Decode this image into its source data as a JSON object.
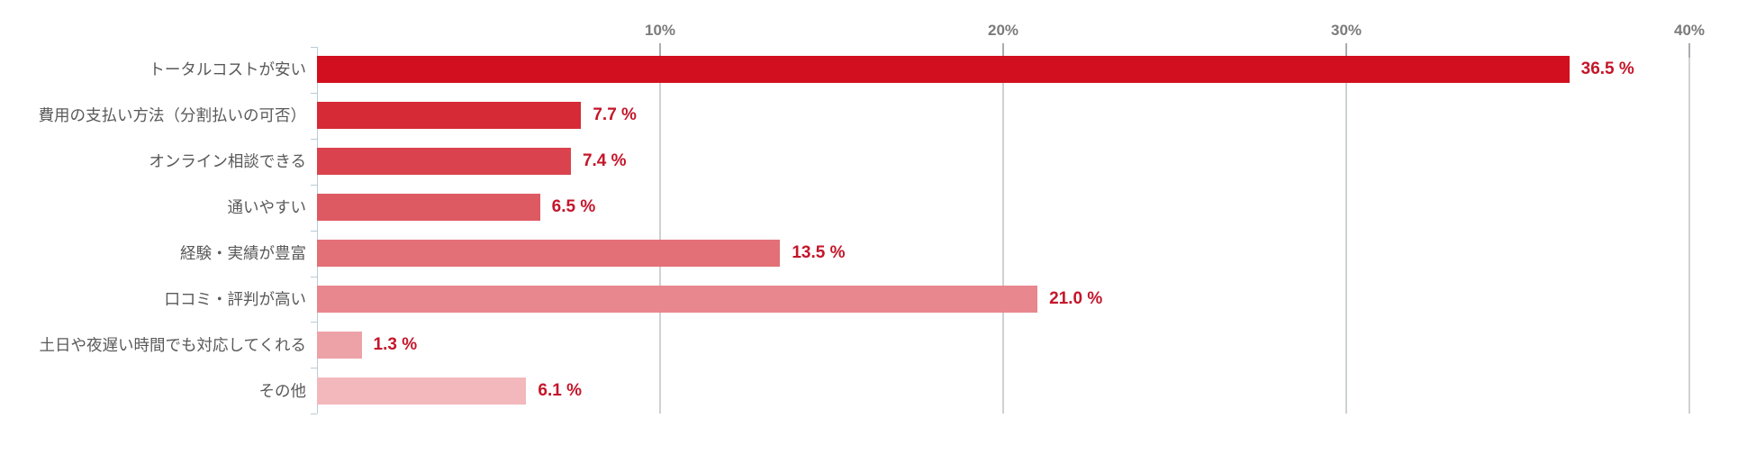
{
  "chart_data": {
    "type": "bar",
    "orientation": "horizontal",
    "title": "",
    "xlabel": "",
    "ylabel": "",
    "xlim": [
      0,
      40
    ],
    "x_unit": "%",
    "grid": true,
    "legend": false,
    "categories": [
      "トータルコストが安い",
      "費用の支払い方法（分割払いの可否）",
      "オンライン相談できる",
      "通いやすい",
      "経験・実績が豊富",
      "口コミ・評判が高い",
      "土日や夜遅い時間でも対応してくれる",
      "その他"
    ],
    "values": [
      36.5,
      7.7,
      7.4,
      6.5,
      13.5,
      21.0,
      1.3,
      6.1
    ],
    "bars": [
      {
        "label": "トータルコストが安い",
        "value": 36.5,
        "value_label": "36.5 %",
        "color": "#d20f1f"
      },
      {
        "label": "費用の支払い方法（分割払いの可否）",
        "value": 7.7,
        "value_label": "7.7 %",
        "color": "#d62b36"
      },
      {
        "label": "オンライン相談できる",
        "value": 7.4,
        "value_label": "7.4 %",
        "color": "#da434d"
      },
      {
        "label": "通いやすい",
        "value": 6.5,
        "value_label": "6.5 %",
        "color": "#de5a62"
      },
      {
        "label": "経験・実績が豊富",
        "value": 13.5,
        "value_label": "13.5 %",
        "color": "#e37077"
      },
      {
        "label": "口コミ・評判が高い",
        "value": 21.0,
        "value_label": "21.0 %",
        "color": "#e8878d"
      },
      {
        "label": "土日や夜遅い時間でも対応してくれる",
        "value": 1.3,
        "value_label": "1.3 %",
        "color": "#eda2a8"
      },
      {
        "label": "その他",
        "value": 6.1,
        "value_label": "6.1 %",
        "color": "#f2b8bc"
      }
    ],
    "x_ticks": [
      {
        "label": "10%",
        "value": 10
      },
      {
        "label": "20%",
        "value": 20
      },
      {
        "label": "30%",
        "value": 30
      },
      {
        "label": "40%",
        "value": 40
      }
    ]
  },
  "colors": {
    "background": "#ffffff",
    "gridline": "#cdd1d3",
    "grid_tick": "#a9adb0",
    "axis_line": "#b9cbd8",
    "category_label": "#595959",
    "axis_label": "#7b7b7b",
    "value_label": "#c4162a"
  }
}
